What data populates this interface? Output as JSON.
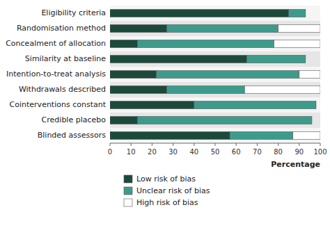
{
  "chart_data": {
    "type": "bar",
    "orientation": "horizontal",
    "stacked": true,
    "categories": [
      "Eligibility criteria",
      "Randomisation method",
      "Concealment of allocation",
      "Similarity at baseline",
      "Intention-to-treat analysis",
      "Withdrawals described",
      "Cointerventions constant",
      "Credible placebo",
      "Blinded assessors"
    ],
    "series": [
      {
        "name": "Low risk of bias",
        "color": "#1b4a3c",
        "values": [
          85,
          27,
          13,
          65,
          22,
          27,
          40,
          13,
          57
        ]
      },
      {
        "name": "Unclear risk of bias",
        "color": "#3d9b8c",
        "values": [
          8,
          53,
          65,
          28,
          68,
          37,
          58,
          83,
          30
        ]
      },
      {
        "name": "High risk of bias",
        "color": "#ffffff",
        "values": [
          0,
          20,
          22,
          0,
          10,
          36,
          0,
          0,
          13
        ]
      }
    ],
    "x_label": "Percentage",
    "xlim": [
      0,
      100
    ],
    "xticks": [
      0,
      10,
      20,
      30,
      40,
      50,
      60,
      70,
      80,
      90,
      100
    ],
    "legend": "bottom",
    "grid": false
  }
}
